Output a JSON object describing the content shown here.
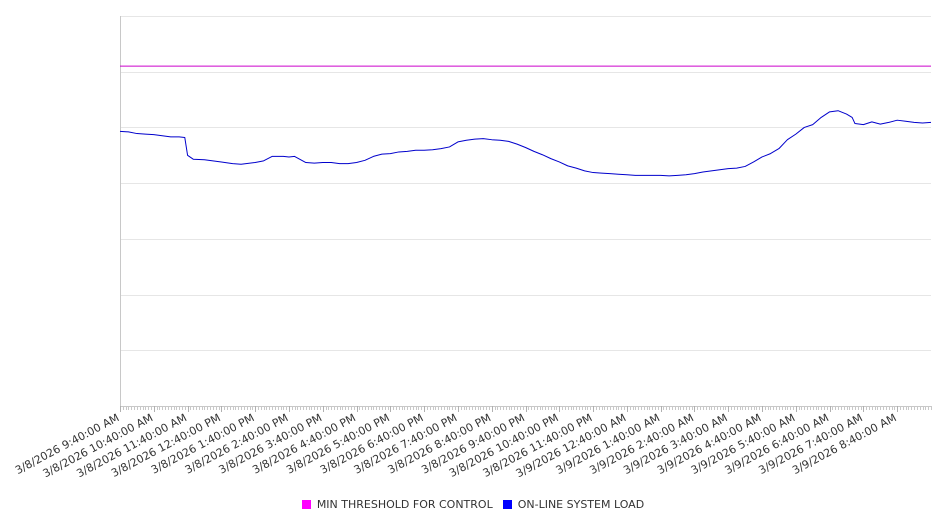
{
  "chart_data": {
    "type": "line",
    "title": "",
    "xlabel": "",
    "ylabel": "",
    "ylim": [
      0,
      7
    ],
    "grid": true,
    "legend_position": "bottom",
    "x_tick_labels": [
      "3/8/2026 9:40:00 AM",
      "3/8/2026 10:40:00 AM",
      "3/8/2026 11:40:00 AM",
      "3/8/2026 12:40:00 PM",
      "3/8/2026 1:40:00 PM",
      "3/8/2026 2:40:00 PM",
      "3/8/2026 3:40:00 PM",
      "3/8/2026 4:40:00 PM",
      "3/8/2026 5:40:00 PM",
      "3/8/2026 6:40:00 PM",
      "3/8/2026 7:40:00 PM",
      "3/8/2026 8:40:00 PM",
      "3/8/2026 9:40:00 PM",
      "3/8/2026 10:40:00 PM",
      "3/8/2026 11:40:00 PM",
      "3/9/2026 12:40:00 AM",
      "3/9/2026 1:40:00 AM",
      "3/9/2026 2:40:00 AM",
      "3/9/2026 3:40:00 AM",
      "3/9/2026 4:40:00 AM",
      "3/9/2026 5:40:00 AM",
      "3/9/2026 6:40:00 AM",
      "3/9/2026 7:40:00 AM",
      "3/9/2026 8:40:00 AM"
    ],
    "x_minutes_between_ticks": 60,
    "series": [
      {
        "name": "MIN THRESHOLD FOR CONTROL",
        "color": "#cc00cc",
        "minutes": [
          0,
          1440
        ],
        "values": [
          6.1,
          6.1
        ]
      },
      {
        "name": "ON-LINE SYSTEM LOAD",
        "color": "#0000cc",
        "minutes": [
          0,
          15,
          30,
          45,
          60,
          75,
          90,
          105,
          115,
          120,
          130,
          150,
          165,
          180,
          200,
          215,
          240,
          255,
          270,
          290,
          300,
          310,
          330,
          345,
          360,
          375,
          390,
          405,
          420,
          435,
          450,
          465,
          480,
          495,
          510,
          525,
          540,
          555,
          570,
          585,
          600,
          615,
          630,
          645,
          660,
          675,
          690,
          705,
          720,
          735,
          750,
          765,
          780,
          795,
          810,
          825,
          840,
          855,
          870,
          885,
          900,
          915,
          930,
          945,
          960,
          975,
          990,
          1005,
          1020,
          1035,
          1050,
          1065,
          1080,
          1095,
          1110,
          1125,
          1140,
          1155,
          1170,
          1185,
          1200,
          1215,
          1230,
          1245,
          1260,
          1275,
          1290,
          1300,
          1305,
          1320,
          1335,
          1350,
          1365,
          1380,
          1395,
          1410,
          1425,
          1440
        ],
        "values": [
          4.93,
          4.92,
          4.89,
          4.88,
          4.87,
          4.85,
          4.83,
          4.83,
          4.82,
          4.5,
          4.43,
          4.42,
          4.4,
          4.38,
          4.35,
          4.34,
          4.37,
          4.4,
          4.48,
          4.48,
          4.47,
          4.48,
          4.37,
          4.36,
          4.37,
          4.37,
          4.35,
          4.35,
          4.37,
          4.41,
          4.48,
          4.52,
          4.53,
          4.56,
          4.57,
          4.59,
          4.59,
          4.6,
          4.62,
          4.65,
          4.74,
          4.77,
          4.79,
          4.8,
          4.78,
          4.77,
          4.75,
          4.7,
          4.64,
          4.57,
          4.51,
          4.44,
          4.38,
          4.31,
          4.27,
          4.22,
          4.19,
          4.18,
          4.17,
          4.16,
          4.15,
          4.14,
          4.14,
          4.14,
          4.14,
          4.13,
          4.14,
          4.15,
          4.17,
          4.2,
          4.22,
          4.24,
          4.26,
          4.27,
          4.3,
          4.38,
          4.47,
          4.53,
          4.62,
          4.78,
          4.88,
          5.0,
          5.05,
          5.18,
          5.28,
          5.3,
          5.24,
          5.18,
          5.07,
          5.05,
          5.1,
          5.06,
          5.09,
          5.13,
          5.11,
          5.09,
          5.08,
          5.09
        ]
      }
    ]
  }
}
